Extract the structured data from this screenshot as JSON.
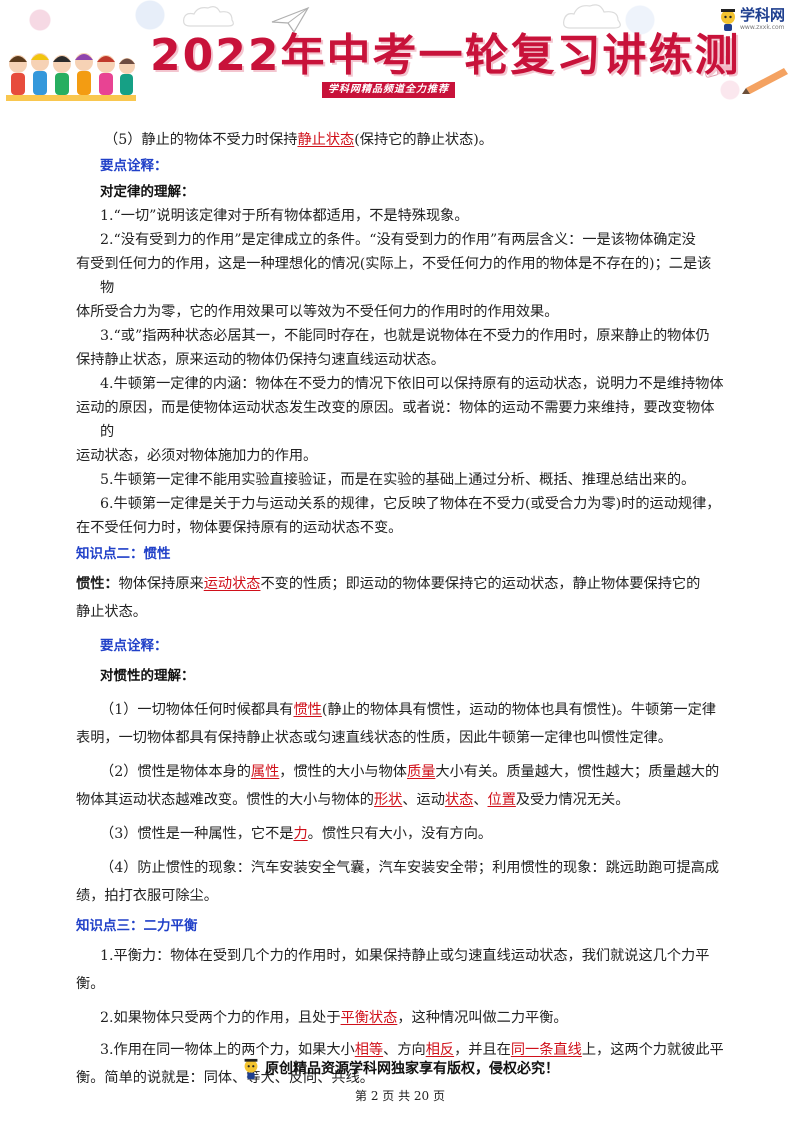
{
  "header": {
    "title": "2022年中考一轮复习讲练测",
    "subtitle": "学科网精品频道全力推荐",
    "logo_text": "学科网",
    "logo_url": "www.zxxk.com"
  },
  "content": {
    "p1_pre": "（5）静止的物体不受力时保持",
    "p1_u": "静止状态",
    "p1_post": "(保持它的静止状态)。",
    "h1": "要点诠释：",
    "h2": "对定律的理解：",
    "l1": "1.“一切”说明该定律对于所有物体都适用，不是特殊现象。",
    "l2a": "2.“没有受到力的作用”是定律成立的条件。“没有受到力的作用”有两层含义：一是该物体确定没",
    "l2b": "有受到任何力的作用，这是一种理想化的情况(实际上，不受任何力的作用的物体是不存在的)；二是该物",
    "l2c": "体所受合力为零，它的作用效果可以等效为不受任何力的作用时的作用效果。",
    "l3a": "3.“或”指两种状态必居其一，不能同时存在，也就是说物体在不受力的作用时，原来静止的物体仍",
    "l3b": "保持静止状态，原来运动的物体仍保持匀速直线运动状态。",
    "l4a": "4.牛顿第一定律的内涵：物体在不受力的情况下依旧可以保持原有的运动状态，说明力不是维持物体",
    "l4b": "运动的原因，而是使物体运动状态发生改变的原因。或者说：物体的运动不需要力来维持，要改变物体的",
    "l4c": "运动状态，必须对物体施加力的作用。",
    "l5": "5.牛顿第一定律不能用实验直接验证，而是在实验的基础上通过分析、概括、推理总结出来的。",
    "l6a": "6.牛顿第一定律是关于力与运动关系的规律，它反映了物体在不受力(或受合力为零)时的运动规律，",
    "l6b": "在不受任何力时，物体要保持原有的运动状态不变。",
    "k2": "知识点二：惯性",
    "inertia_label": "惯性：",
    "inertia_pre": "物体保持原来",
    "inertia_u": "运动状态",
    "inertia_post": "不变的性质；即运动的物体要保持它的运动状态，静止物体要保持它的",
    "inertia_b": "静止状态。",
    "h3": "要点诠释：",
    "h4": "对惯性的理解：",
    "i1_pre": "（1）一切物体任何时候都具有",
    "i1_u": "惯性",
    "i1_post": "(静止的物体具有惯性，运动的物体也具有惯性)。牛顿第一定律",
    "i1_b": "表明，一切物体都具有保持静止状态或匀速直线状态的性质，因此牛顿第一定律也叫惯性定律。",
    "i2_pre": "（2）惯性是物体本身的",
    "i2_u1": "属性",
    "i2_mid1": "，惯性的大小与物体",
    "i2_u2": "质量",
    "i2_mid2": "大小有关。质量越大，惯性越大；质量越大的",
    "i2_b_pre": "物体其运动状态越难改变。惯性的大小与物体的",
    "i2_b_u1": "形状",
    "i2_b_m1": "、运动",
    "i2_b_u2": "状态",
    "i2_b_m2": "、",
    "i2_b_u3": "位置",
    "i2_b_post": "及受力情况无关。",
    "i3_pre": "（3）惯性是一种属性，它不是",
    "i3_u": "力",
    "i3_post": "。惯性只有大小，没有方向。",
    "i4a": "（4）防止惯性的现象：汽车安装安全气囊，汽车安装安全带；利用惯性的现象：跳远助跑可提高成",
    "i4b": "绩，拍打衣服可除尘。",
    "k3": "知识点三：二力平衡",
    "b1a": "1.平衡力：物体在受到几个力的作用时，如果保持静止或匀速直线运动状态，我们就说这几个力平",
    "b1b": "衡。",
    "b2_pre": "2.如果物体只受两个力的作用，且处于",
    "b2_u": "平衡状态",
    "b2_post": "，这种情况叫做二力平衡。",
    "b3_pre": "3.作用在同一物体上的两个力，如果大小",
    "b3_u1": "相等",
    "b3_m1": "、方向",
    "b3_u2": "相反",
    "b3_m2": "，并且在",
    "b3_u3": "同一条直线",
    "b3_post": "上，这两个力就彼此平",
    "b3b": "衡。简单的说就是：同体、等大、反向、共线。"
  },
  "footer": {
    "slogan": "原创精品资源学科网独家享有版权，侵权必究！",
    "page": "第 2 页 共 20 页"
  }
}
